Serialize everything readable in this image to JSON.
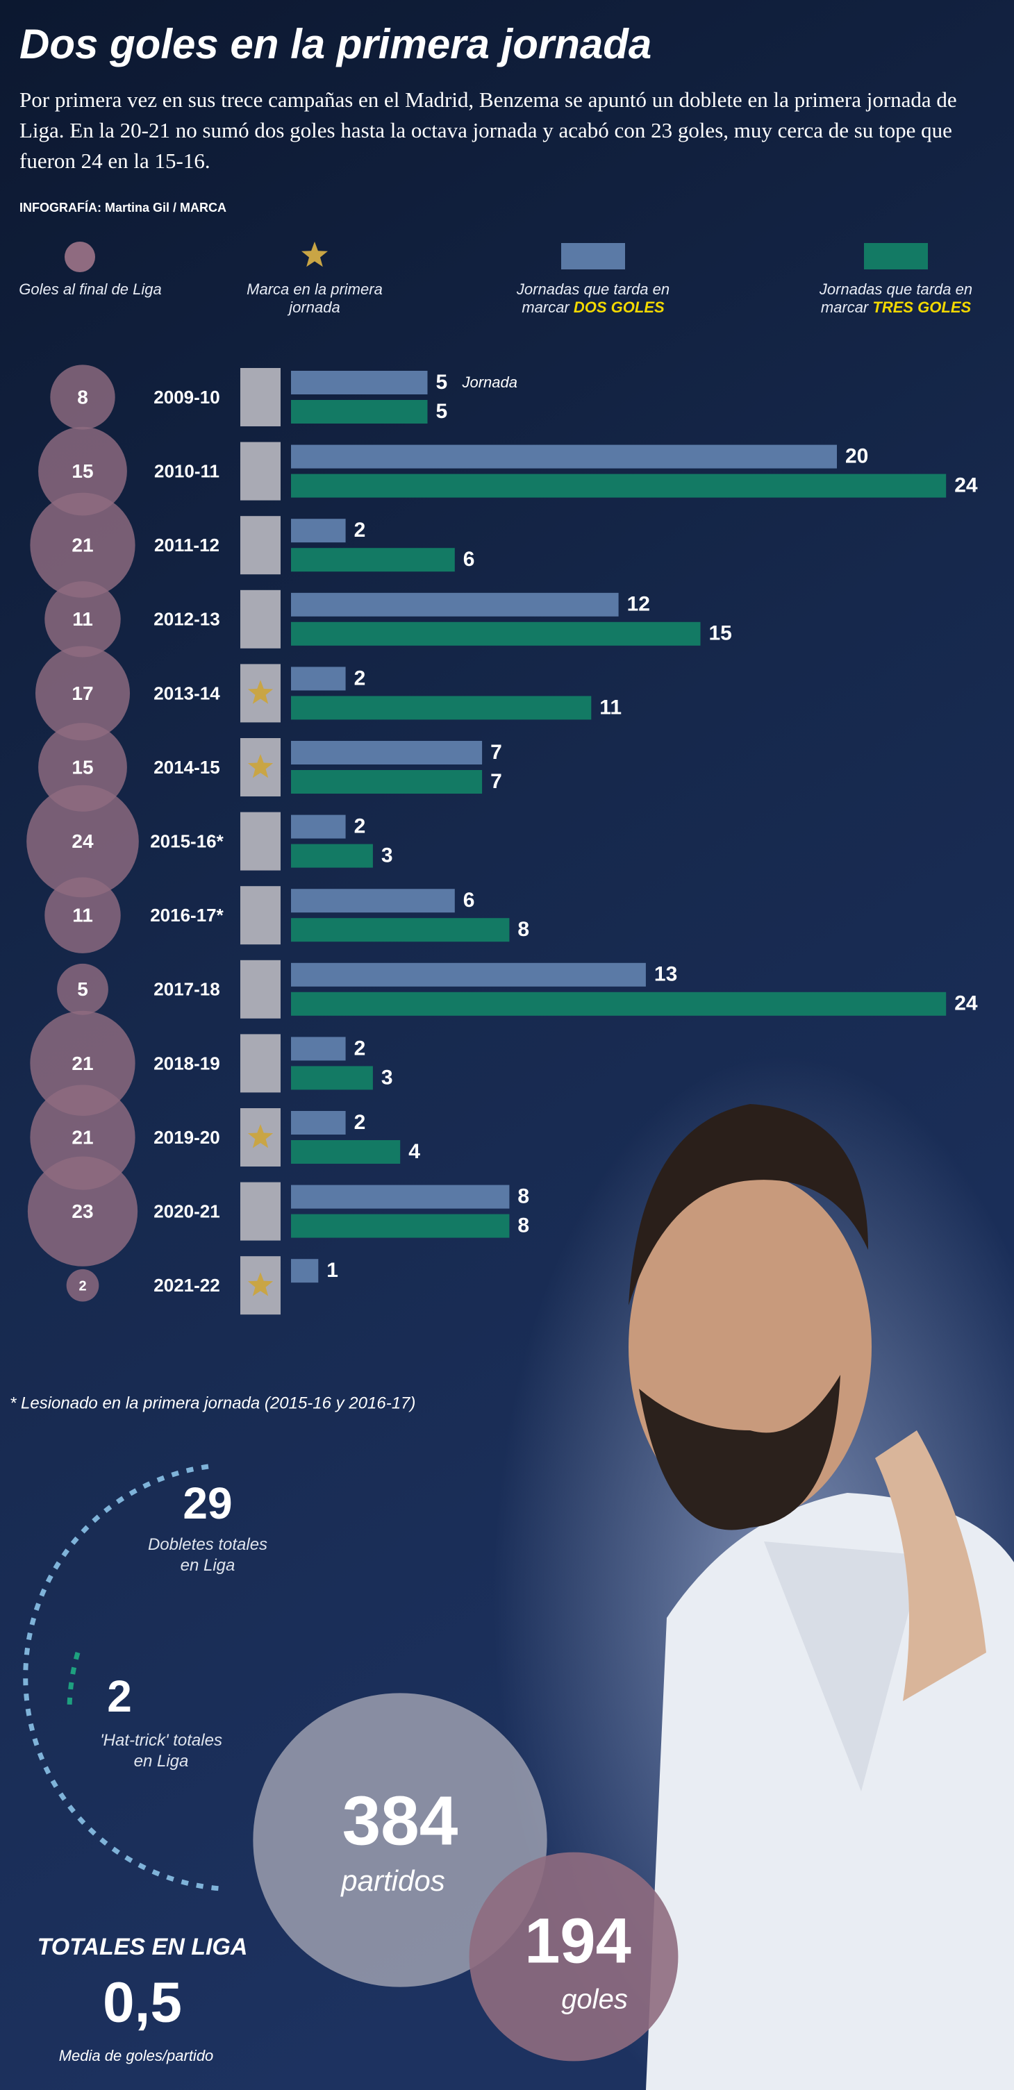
{
  "header": {
    "title": "Dos goles en la primera jornada",
    "intro": "Por primera vez en sus trece campañas en el Madrid, Benzema se apuntó un doblete en la primera jornada de Liga. En la 20-21 no sumó dos goles hasta la octava jornada y acabó con 23 goles, muy cerca de su tope que fueron 24 en la 15-16.",
    "credit": "INFOGRAFÍA: Martina Gil / MARCA"
  },
  "chart_data": {
    "type": "bar",
    "orientation": "horizontal",
    "categories": [
      "2009-10",
      "2010-11",
      "2011-12",
      "2012-13",
      "2013-14",
      "2014-15",
      "2015-16*",
      "2016-17*",
      "2017-18",
      "2018-19",
      "2019-20",
      "2020-21",
      "2021-22"
    ],
    "goals": {
      "name": "Goles al final de Liga",
      "color": "#8f6b80",
      "values": [
        8,
        15,
        21,
        11,
        17,
        15,
        24,
        11,
        5,
        21,
        21,
        23,
        2
      ]
    },
    "first_matchday_goal": {
      "name": "Marca en la primera jornada",
      "color": "#c9a545",
      "values": [
        false,
        false,
        false,
        false,
        true,
        true,
        false,
        false,
        false,
        false,
        true,
        false,
        true
      ]
    },
    "series": [
      {
        "name": "Jornadas que tarda en marcar",
        "highlight": "DOS GOLES",
        "color": "#5b7aa6",
        "values": [
          5,
          20,
          2,
          12,
          2,
          7,
          2,
          6,
          13,
          2,
          2,
          8,
          1
        ]
      },
      {
        "name": "Jornadas que tarda en marcar",
        "highlight": "TRES GOLES",
        "color": "#137a64",
        "values": [
          5,
          24,
          6,
          15,
          11,
          7,
          3,
          8,
          24,
          3,
          4,
          8,
          null
        ]
      }
    ],
    "annotation": "Jornada",
    "footnote": "* Lesionado en la primera jornada (2015-16 y 2016-17)"
  },
  "totals": {
    "doubles": {
      "value": 29,
      "label": "Dobletes totales en Liga"
    },
    "hat_tricks": {
      "value": 2,
      "label": "'Hat-trick' totales en Liga"
    },
    "matches": {
      "value": 384,
      "label": "partidos"
    },
    "goals": {
      "value": 194,
      "label": "goles"
    },
    "heading": "TOTALES EN LIGA",
    "average": {
      "value": "0,5",
      "label": "Media de goles/partido"
    }
  }
}
